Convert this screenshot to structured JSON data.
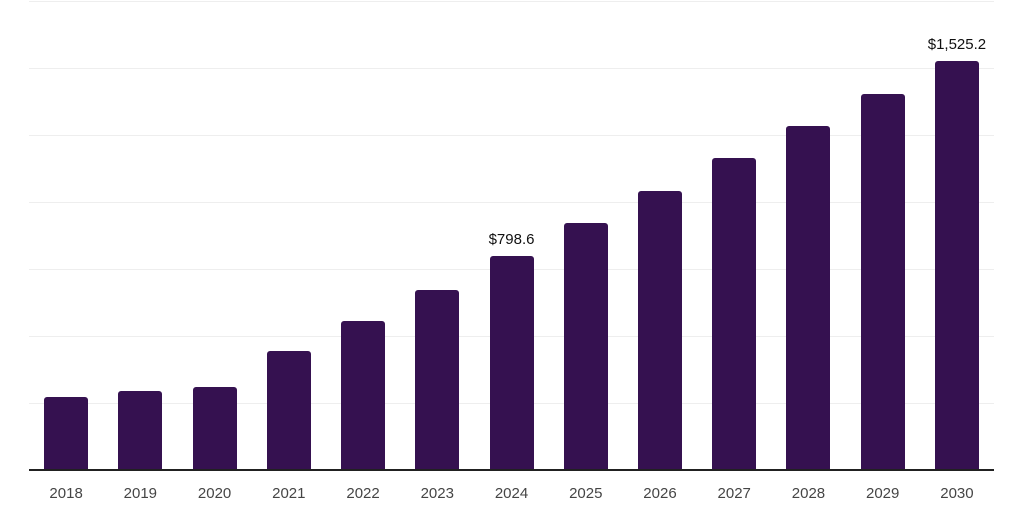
{
  "chart": {
    "background": "#ffffff",
    "bar_color": "#351150",
    "gridline_color": "#eeeeee",
    "axis_line_color": "#212121",
    "x_label_color": "#454545",
    "data_label_color": "#101010"
  },
  "chart_data": {
    "type": "bar",
    "title": "",
    "xlabel": "",
    "ylabel": "",
    "categories": [
      "2018",
      "2019",
      "2020",
      "2021",
      "2022",
      "2023",
      "2024",
      "2025",
      "2026",
      "2027",
      "2028",
      "2029",
      "2030"
    ],
    "values": [
      271,
      295,
      310,
      445,
      556,
      672,
      798.6,
      921,
      1041,
      1163,
      1284,
      1403,
      1525.2
    ],
    "data_labels": [
      {
        "index": 6,
        "category": "2024",
        "text": "$798.6"
      },
      {
        "index": 12,
        "category": "2030",
        "text": "$1,525.2"
      }
    ],
    "ylim": [
      0,
      1750
    ],
    "grid_step": 250,
    "grid": "horizontal-only",
    "legend": "none",
    "y_axis_tick_labels": "none"
  }
}
